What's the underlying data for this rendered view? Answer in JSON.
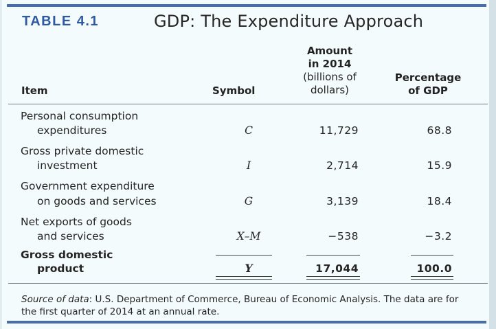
{
  "table": {
    "label": "TABLE 4.1",
    "title": "GDP: The Expenditure Approach"
  },
  "columns": {
    "item": "Item",
    "symbol": "Symbol",
    "amount_line1": "Amount",
    "amount_line2": "in 2014",
    "amount_line3": "(billions of",
    "amount_line4": "dollars)",
    "percent_line1": "Percentage",
    "percent_line2": "of GDP"
  },
  "rows": [
    {
      "item_line1": "Personal consumption",
      "item_line2": "expenditures",
      "symbol": "C",
      "amount": "11,729",
      "percent": "68.8"
    },
    {
      "item_line1": "Gross private domestic",
      "item_line2": "investment",
      "symbol": "I",
      "amount": "2,714",
      "percent": "15.9"
    },
    {
      "item_line1": "Government expenditure",
      "item_line2": "on goods and services",
      "symbol": "G",
      "amount": "3,139",
      "percent": "18.4"
    },
    {
      "item_line1": "Net exports of goods",
      "item_line2": "and services",
      "symbol": "X–M",
      "amount": "−538",
      "percent": "−3.2"
    }
  ],
  "total": {
    "item_line1": "Gross domestic",
    "item_line2": "product",
    "symbol": "Y",
    "amount": "17,044",
    "percent": "100.0"
  },
  "source": {
    "lead": "Source of data",
    "text": ": U.S. Department of Commerce, Bureau of Economic Analysis. The data are for the first quarter of 2014 at an annual rate."
  },
  "colors": {
    "accent": "#2f59a1",
    "rule": "#4a6da7",
    "background": "#f4fbfd"
  }
}
